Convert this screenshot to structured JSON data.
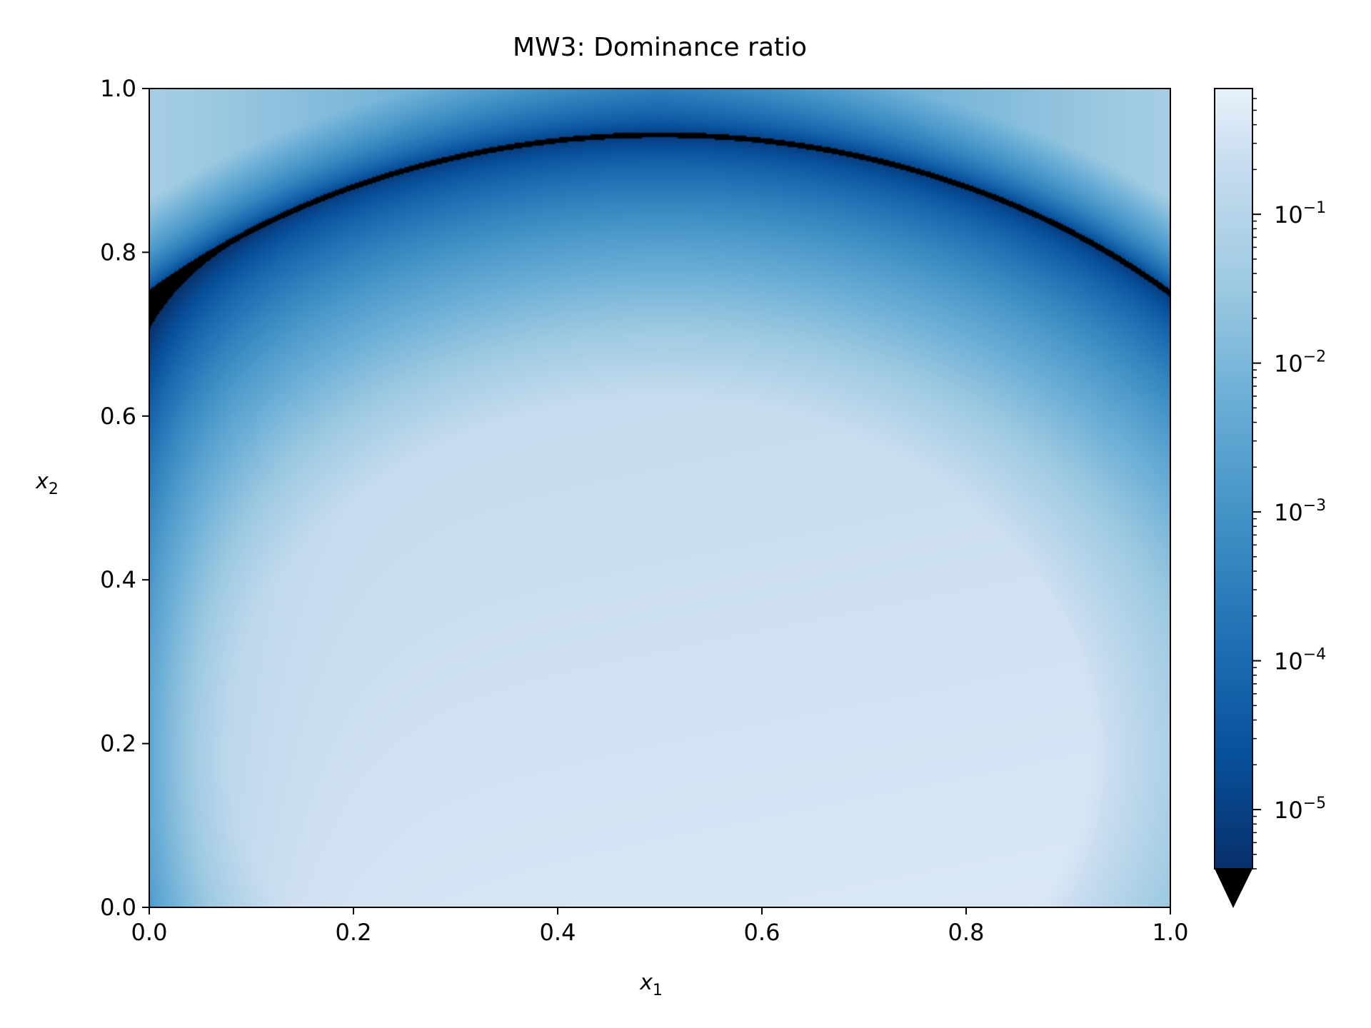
{
  "chart_data": {
    "type": "heatmap",
    "title": "MW3: Dominance ratio",
    "xlabel_base": "x",
    "xlabel_sub": "1",
    "ylabel_base": "x",
    "ylabel_sub": "2",
    "xlim": [
      0.0,
      1.0
    ],
    "ylim": [
      0.0,
      1.0
    ],
    "x_ticks": [
      0.0,
      0.2,
      0.4,
      0.6,
      0.8,
      1.0
    ],
    "x_tick_labels": [
      "0.0",
      "0.2",
      "0.4",
      "0.6",
      "0.8",
      "1.0"
    ],
    "y_ticks": [
      0.0,
      0.2,
      0.4,
      0.6,
      0.8,
      1.0
    ],
    "y_tick_labels": [
      "0.0",
      "0.2",
      "0.4",
      "0.6",
      "0.8",
      "1.0"
    ],
    "colormap": "Blues_r",
    "color_scale": "log",
    "colorbar": {
      "range": [
        4e-06,
        0.7
      ],
      "extend": "min",
      "major_ticks": [
        1e-05,
        0.0001,
        0.001,
        0.01,
        0.1
      ],
      "tick_label_base": "10",
      "tick_label_exponents": [
        "−5",
        "−4",
        "−3",
        "−2",
        "−1"
      ]
    },
    "features": {
      "front_curve_y_at_x0": 0.75,
      "front_curve_y_at_x05": 1.0,
      "front_curve_y_at_x1": 0.75
    },
    "grid": false,
    "legend": "none"
  }
}
